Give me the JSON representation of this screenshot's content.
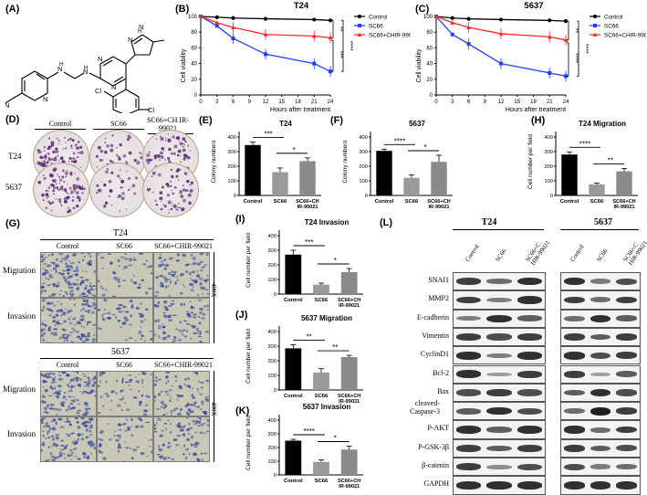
{
  "panels": {
    "A": "(A)",
    "B": "(B)",
    "C": "(C)",
    "D": "(D)",
    "E": "(E)",
    "F": "(F)",
    "G": "(G)",
    "H": "(H)",
    "I": "(I)",
    "J": "(J)",
    "K": "(K)",
    "L": "(L)"
  },
  "colors": {
    "black": "#000000",
    "blue": "#1f3fff",
    "red": "#ff2a2a",
    "gray": "#8c8c8c",
    "purple": "#5a2a78"
  },
  "chart_data": [
    {
      "id": "B",
      "type": "line",
      "title": "T24",
      "xlabel": "Hours after treatment",
      "ylabel": "Cell viability",
      "x": [
        0,
        3,
        6,
        12,
        21,
        24
      ],
      "xlim": [
        0,
        24
      ],
      "ylim": [
        0,
        100
      ],
      "xticks": [
        "0",
        "3",
        "6",
        "9",
        "12",
        "15",
        "18",
        "21",
        "24"
      ],
      "yticks": [
        "0",
        "20",
        "40",
        "60",
        "80",
        "100"
      ],
      "legend_position": "top-right",
      "series": [
        {
          "name": "Control",
          "values": [
            100,
            99,
            98,
            97,
            96,
            95
          ],
          "color": "#000000",
          "marker": "circle"
        },
        {
          "name": "SC66",
          "values": [
            100,
            88,
            72,
            52,
            40,
            30
          ],
          "color": "#1f3fff",
          "marker": "square"
        },
        {
          "name": "SC66+CHIR-99021",
          "values": [
            100,
            92,
            86,
            77,
            75,
            73
          ],
          "color": "#ff2a2a",
          "marker": "triangle"
        }
      ],
      "sig": [
        "**",
        "***",
        "****"
      ]
    },
    {
      "id": "C",
      "type": "line",
      "title": "5637",
      "xlabel": "Hours after treatment",
      "ylabel": "Cell viability",
      "x": [
        0,
        3,
        6,
        12,
        21,
        24
      ],
      "xlim": [
        0,
        24
      ],
      "ylim": [
        0,
        100
      ],
      "xticks": [
        "0",
        "3",
        "6",
        "9",
        "12",
        "15",
        "18",
        "21",
        "24"
      ],
      "yticks": [
        "0",
        "20",
        "40",
        "60",
        "80",
        "100"
      ],
      "legend_position": "top-right",
      "series": [
        {
          "name": "Control",
          "values": [
            100,
            98,
            97,
            96,
            95,
            94
          ],
          "color": "#000000",
          "marker": "circle"
        },
        {
          "name": "SC66",
          "values": [
            100,
            77,
            65,
            40,
            28,
            24
          ],
          "color": "#1f3fff",
          "marker": "square"
        },
        {
          "name": "SC66+CHIR-99021",
          "values": [
            100,
            92,
            86,
            78,
            74,
            70
          ],
          "color": "#ff2a2a",
          "marker": "triangle"
        }
      ],
      "sig": [
        "**",
        "****",
        "****"
      ]
    },
    {
      "id": "E",
      "type": "bar",
      "title": "T24",
      "ylabel": "Colony numbers",
      "categories": [
        "Control",
        "SC66",
        "SC66+CH IR-99021"
      ],
      "values": [
        345,
        160,
        235
      ],
      "errors": [
        20,
        28,
        22
      ],
      "ylim": [
        0,
        400
      ],
      "yticks": [
        "0",
        "100",
        "200",
        "300",
        "400"
      ],
      "sig": [
        "***",
        "*"
      ]
    },
    {
      "id": "F",
      "type": "bar",
      "title": "5637",
      "ylabel": "Colony numbers",
      "categories": [
        "Control",
        "SC66",
        "SC66+CH IR-99021"
      ],
      "values": [
        305,
        120,
        230
      ],
      "errors": [
        12,
        20,
        45
      ],
      "ylim": [
        0,
        400
      ],
      "yticks": [
        "0",
        "100",
        "200",
        "300",
        "400"
      ],
      "sig": [
        "****",
        "*"
      ]
    },
    {
      "id": "H",
      "type": "bar",
      "title": "T24 Migration",
      "ylabel": "Cell number per field",
      "categories": [
        "Control",
        "SC66",
        "SC66+CH IR-99021"
      ],
      "values": [
        280,
        75,
        165
      ],
      "errors": [
        18,
        10,
        20
      ],
      "ylim": [
        0,
        400
      ],
      "yticks": [
        "0",
        "100",
        "200",
        "300",
        "400"
      ],
      "sig": [
        "****",
        "**"
      ]
    },
    {
      "id": "I",
      "type": "bar",
      "title": "T24 Invasion",
      "ylabel": "Cell number per field",
      "categories": [
        "Control",
        "SC66",
        "SC66+CH IR-99021"
      ],
      "values": [
        270,
        65,
        150
      ],
      "errors": [
        30,
        10,
        25
      ],
      "ylim": [
        0,
        400
      ],
      "yticks": [
        "0",
        "100",
        "200",
        "300",
        "400"
      ],
      "sig": [
        "***",
        "*"
      ]
    },
    {
      "id": "J",
      "type": "bar",
      "title": "5637 Migration",
      "ylabel": "Cell number per field",
      "categories": [
        "Control",
        "SC66",
        "SC66+CH IR-99021"
      ],
      "values": [
        285,
        120,
        225
      ],
      "errors": [
        25,
        25,
        12
      ],
      "ylim": [
        0,
        400
      ],
      "yticks": [
        "0",
        "100",
        "200",
        "300",
        "400"
      ],
      "sig": [
        "**",
        "**"
      ]
    },
    {
      "id": "K",
      "type": "bar",
      "title": "5637 Invasion",
      "ylabel": "Cell number per field",
      "categories": [
        "Control",
        "SC66",
        "SC66+CH IR-99021"
      ],
      "values": [
        250,
        95,
        185
      ],
      "errors": [
        10,
        15,
        25
      ],
      "ylim": [
        0,
        400
      ],
      "yticks": [
        "0",
        "100",
        "200",
        "300",
        "400"
      ],
      "sig": [
        "****",
        "*"
      ]
    }
  ],
  "colony": {
    "columns": [
      "Control",
      "SC66",
      "SC66+CH IR-99021"
    ],
    "rows": [
      "T24",
      "5637"
    ]
  },
  "transwell": {
    "t24_title": "T24",
    "t5637_title": "5637",
    "columns": [
      "Control",
      "SC66",
      "SC66+CHIR-99021"
    ],
    "rows": [
      "Migration",
      "Invasion"
    ],
    "magnification": "400X"
  },
  "western": {
    "t24_title": "T24",
    "t5637_title": "5637",
    "lanes": [
      "Control",
      "SC66",
      "SC66+C HIR-99021"
    ],
    "proteins": [
      "SNAI1",
      "MMP2",
      "E-cadherin",
      "Vimentin",
      "CyclinD1",
      "Bcl-2",
      "Bax",
      "cleaved-Caspase-3",
      "P-AKT",
      "P-GSK-3β",
      "β-catenin",
      "GAPDH"
    ],
    "t24_intensity": [
      [
        0.8,
        0.5,
        0.9
      ],
      [
        0.8,
        0.4,
        0.9
      ],
      [
        0.4,
        0.9,
        0.6
      ],
      [
        0.8,
        0.7,
        0.8
      ],
      [
        0.9,
        0.4,
        0.9
      ],
      [
        0.9,
        0.2,
        0.8
      ],
      [
        0.7,
        0.8,
        0.7
      ],
      [
        0.6,
        0.9,
        0.7
      ],
      [
        0.9,
        0.6,
        0.9
      ],
      [
        0.8,
        0.6,
        0.8
      ],
      [
        0.8,
        0.3,
        0.7
      ],
      [
        0.9,
        0.9,
        0.9
      ]
    ],
    "t5637_intensity": [
      [
        0.9,
        0.4,
        0.7
      ],
      [
        0.8,
        0.5,
        0.8
      ],
      [
        0.5,
        0.9,
        0.6
      ],
      [
        0.8,
        0.6,
        0.8
      ],
      [
        0.9,
        0.7,
        0.8
      ],
      [
        0.8,
        0.2,
        0.6
      ],
      [
        0.6,
        0.9,
        0.7
      ],
      [
        0.5,
        1.0,
        0.8
      ],
      [
        0.9,
        0.5,
        0.8
      ],
      [
        0.8,
        0.6,
        0.7
      ],
      [
        0.7,
        0.4,
        0.5
      ],
      [
        0.9,
        0.9,
        0.9
      ]
    ]
  }
}
